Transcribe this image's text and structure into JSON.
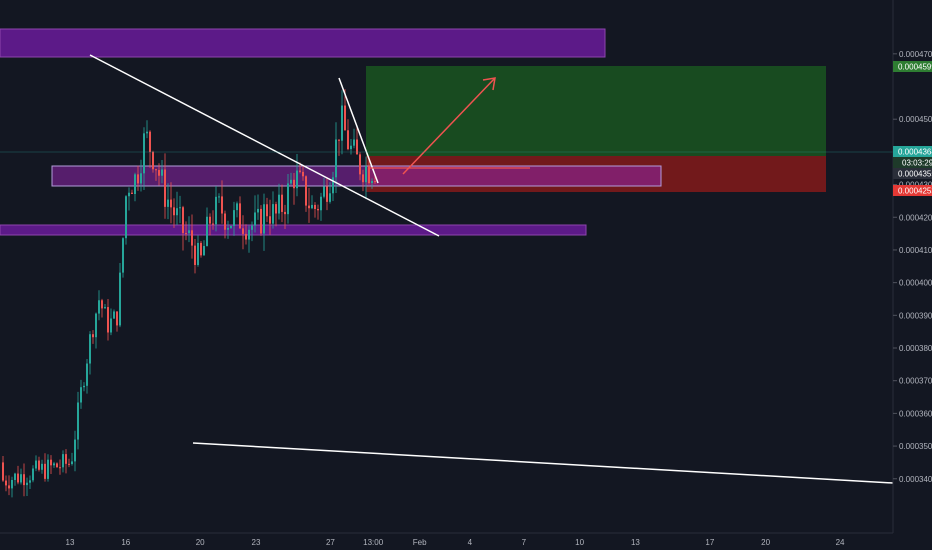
{
  "chart_data": {
    "type": "candlestick",
    "title": "",
    "xlabel": "",
    "ylabel": "",
    "ylim": [
      0.00033289,
      0.00047729
    ],
    "y_ticks": [
      "0.0004700",
      "0.0004500",
      "0.0004400",
      "0.0004300",
      "0.0004200",
      "0.0004100",
      "0.0004000",
      "0.0003900",
      "0.0003800",
      "0.0003700",
      "0.0003600",
      "0.0003500",
      "0.0003400"
    ],
    "x_ticks": [
      "13",
      "16",
      "20",
      "23",
      "27",
      "13:00",
      "Feb",
      "4",
      "7",
      "10",
      "13",
      "17",
      "20",
      "24"
    ],
    "x_tick_index": [
      0,
      3,
      7,
      10,
      14,
      16.3,
      18.8,
      21.5,
      24.4,
      27.4,
      30.4,
      34.4,
      37.4,
      41.4
    ],
    "grid": false,
    "markers": {
      "target_price": "0.0004599",
      "current_price": "0.0004364",
      "entry_price": "0.0004355",
      "countdown": "03:03:29",
      "stop_price": "0.0004253"
    },
    "candles_sampled": {
      "index": [
        0,
        0.5,
        1,
        1.5,
        2,
        2.5,
        3,
        3.5,
        4,
        4.5,
        5,
        5.5,
        6,
        6.5,
        7,
        7.5,
        8,
        8.5,
        9,
        9.5,
        10,
        10.5,
        11,
        11.5,
        12,
        12.5,
        13,
        13.5,
        14,
        14.5,
        15,
        15.5,
        16
      ],
      "close": [
        0.000345,
        0.000365,
        0.000382,
        0.000395,
        0.000387,
        0.00039,
        0.00043,
        0.000432,
        0.000445,
        0.000438,
        0.000428,
        0.000422,
        0.000416,
        0.000412,
        0.000407,
        0.00042,
        0.000423,
        0.000419,
        0.00042,
        0.000418,
        0.000417,
        0.000423,
        0.00042,
        0.000425,
        0.000433,
        0.000428,
        0.000422,
        0.000426,
        0.000434,
        0.00045,
        0.000441,
        0.000436,
        0.000435
      ]
    },
    "drawings": {
      "boxes": [
        {
          "name": "resistance-zone-top",
          "color": "#6a1b9a"
        },
        {
          "name": "support-zone-middle",
          "color": "#6a1b9a"
        },
        {
          "name": "support-zone-bottom",
          "color": "#6a1b9a"
        },
        {
          "name": "profit-target-zone",
          "color": "#1b5e20"
        },
        {
          "name": "stop-loss-zone",
          "color": "#8b1a1a"
        }
      ],
      "line_color": "#ffffff",
      "arrow_color": "#ef5350"
    },
    "colors": {
      "background": "#131722",
      "up_candle": "#26a69a",
      "down_candle": "#ef5350",
      "price_badge_green": "#2e7d32",
      "price_badge_red": "#e53935"
    }
  }
}
